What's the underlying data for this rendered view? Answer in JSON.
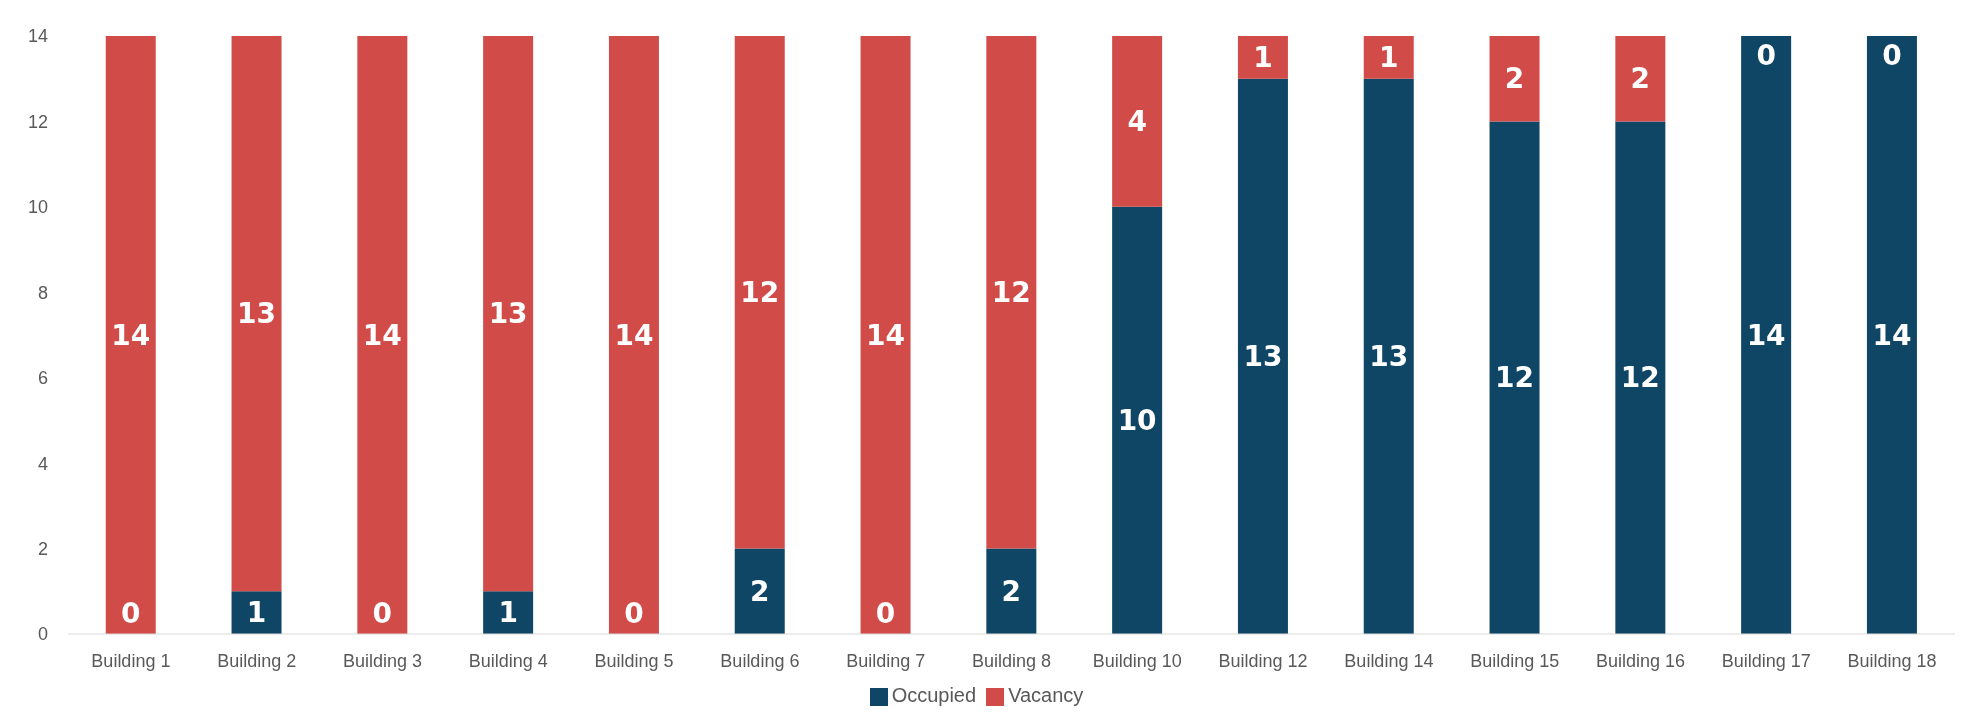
{
  "chart_data": {
    "type": "bar",
    "stacked": true,
    "categories": [
      "Building 1",
      "Building 2",
      "Building 3",
      "Building 4",
      "Building 5",
      "Building 6",
      "Building 7",
      "Building 8",
      "Building 10",
      "Building 12",
      "Building 14",
      "Building 15",
      "Building 16",
      "Building 17",
      "Building 18"
    ],
    "series": [
      {
        "name": "Occupied",
        "color": "#0f4565",
        "values": [
          0,
          1,
          0,
          1,
          0,
          2,
          0,
          2,
          10,
          13,
          13,
          12,
          12,
          14,
          14
        ]
      },
      {
        "name": "Vacancy",
        "color": "#d14b48",
        "values": [
          14,
          13,
          14,
          13,
          14,
          12,
          14,
          12,
          4,
          1,
          1,
          2,
          2,
          0,
          0
        ]
      }
    ],
    "ylim": [
      0,
      14
    ],
    "yticks": [
      0,
      2,
      4,
      6,
      8,
      10,
      12,
      14
    ],
    "grid": false,
    "legend": "bottom",
    "data_labels": true
  }
}
